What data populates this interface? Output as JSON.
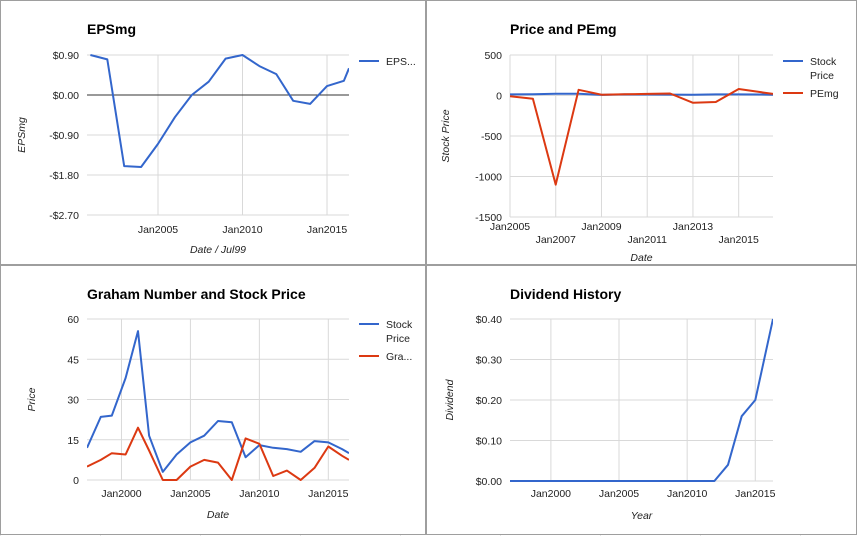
{
  "chart_data": [
    {
      "id": "eps",
      "type": "line",
      "title": "EPSmg",
      "xlabel": "Date / Jul99",
      "ylabel": "EPSmg",
      "xlim": [
        2000.8,
        2016.3
      ],
      "ylim": [
        -2.7,
        0.9
      ],
      "yticks": [
        0.9,
        0,
        -0.9,
        -1.8,
        -2.7
      ],
      "ytick_labels": [
        "$0.90",
        "$0.00",
        "-$0.90",
        "-$1.80",
        "-$2.70"
      ],
      "xticks": [
        2005,
        2010,
        2015
      ],
      "xtick_labels": [
        "Jan2005",
        "Jan2010",
        "Jan2015"
      ],
      "zero_line": true,
      "grid": true,
      "legend_position": "right",
      "series": [
        {
          "name": "EPS...",
          "color": "#3366cc",
          "x": [
            2001,
            2002,
            2003,
            2004,
            2005,
            2006,
            2007,
            2008,
            2009,
            2010,
            2011,
            2012,
            2013,
            2014,
            2015,
            2016,
            2016.3
          ],
          "y": [
            0.9,
            0.8,
            -1.6,
            -1.62,
            -1.1,
            -0.5,
            0.0,
            0.3,
            0.82,
            0.9,
            0.65,
            0.47,
            -0.13,
            -0.2,
            0.2,
            0.32,
            0.6
          ]
        }
      ]
    },
    {
      "id": "pe",
      "type": "line",
      "title": "Price and PEmg",
      "xlabel": "Date",
      "ylabel": "Stock Price",
      "xlim": [
        2005,
        2016.5
      ],
      "ylim": [
        -1500,
        500
      ],
      "yticks": [
        500,
        0,
        -500,
        -1000,
        -1500
      ],
      "ytick_labels": [
        "500",
        "0",
        "-500",
        "-1000",
        "-1500"
      ],
      "xticks": [
        2005,
        2007,
        2009,
        2011,
        2013,
        2015
      ],
      "xtick_labels": [
        "Jan2005",
        "Jan2007",
        "Jan2009",
        "Jan2011",
        "Jan2013",
        "Jan2015"
      ],
      "grid": true,
      "legend_position": "right",
      "series": [
        {
          "name": "Stock Price",
          "color": "#3366cc",
          "x": [
            2005,
            2006,
            2007,
            2008,
            2009,
            2010,
            2011,
            2012,
            2013,
            2014,
            2015,
            2016,
            2016.5
          ],
          "y": [
            14,
            16,
            22,
            21,
            8,
            13,
            12,
            11,
            10,
            14,
            14,
            12,
            10
          ]
        },
        {
          "name": "PEmg",
          "color": "#dc3912",
          "x": [
            2005,
            2006,
            2007,
            2008,
            2009,
            2010,
            2011,
            2012,
            2013,
            2014,
            2015,
            2016,
            2016.5
          ],
          "y": [
            -10,
            -40,
            -1100,
            70,
            10,
            15,
            20,
            25,
            -90,
            -80,
            80,
            40,
            20
          ]
        }
      ]
    },
    {
      "id": "graham",
      "type": "line",
      "title": "Graham Number and Stock Price",
      "xlabel": "Date",
      "ylabel": "Price",
      "xlim": [
        1997.5,
        2016.5
      ],
      "ylim": [
        0,
        60
      ],
      "yticks": [
        60,
        45,
        30,
        15,
        0
      ],
      "ytick_labels": [
        "60",
        "45",
        "30",
        "15",
        "0"
      ],
      "xticks": [
        2000,
        2005,
        2010,
        2015
      ],
      "xtick_labels": [
        "Jan2000",
        "Jan2005",
        "Jan2010",
        "Jan2015"
      ],
      "grid": true,
      "legend_position": "right",
      "series": [
        {
          "name": "Stock Price",
          "color": "#3366cc",
          "x": [
            1997.5,
            1998.5,
            1999.3,
            2000.3,
            2001.2,
            2002,
            2003,
            2004,
            2005,
            2006,
            2007,
            2008,
            2009,
            2010,
            2011,
            2012,
            2013,
            2014,
            2015,
            2016,
            2016.5
          ],
          "y": [
            12,
            23.5,
            24,
            38,
            55.5,
            16.5,
            3,
            9.5,
            14,
            16.5,
            22,
            21.5,
            8.5,
            13,
            12,
            11.5,
            10.5,
            14.5,
            14,
            11.5,
            10
          ]
        },
        {
          "name": "Gra...",
          "color": "#dc3912",
          "x": [
            1997.5,
            1998.5,
            1999.3,
            2000.3,
            2001.2,
            2002,
            2003,
            2004,
            2005,
            2006,
            2007,
            2008,
            2009,
            2010,
            2011,
            2012,
            2013,
            2014,
            2015,
            2016,
            2016.5
          ],
          "y": [
            5,
            7.5,
            10,
            9.5,
            19.5,
            11,
            0,
            0,
            5,
            7.5,
            6.5,
            0,
            15.5,
            13.5,
            1.5,
            3.5,
            0,
            4.5,
            12.5,
            9,
            7.5
          ]
        }
      ]
    },
    {
      "id": "dividend",
      "type": "line",
      "title": "Dividend History",
      "xlabel": "Year",
      "ylabel": "Dividend",
      "xlim": [
        1997,
        2016.3
      ],
      "ylim": [
        0,
        0.4
      ],
      "yticks": [
        0.4,
        0.3,
        0.2,
        0.1,
        0
      ],
      "ytick_labels": [
        "$0.40",
        "$0.30",
        "$0.20",
        "$0.10",
        "$0.00"
      ],
      "xticks": [
        2000,
        2005,
        2010,
        2015
      ],
      "xtick_labels": [
        "Jan2000",
        "Jan2005",
        "Jan2010",
        "Jan2015"
      ],
      "grid": true,
      "legend_position": "none",
      "series": [
        {
          "color": "#3366cc",
          "x": [
            1997,
            2000,
            2005,
            2010,
            2012,
            2013,
            2014,
            2015,
            2016.3
          ],
          "y": [
            0,
            0,
            0,
            0,
            0,
            0.04,
            0.16,
            0.2,
            0.4
          ]
        }
      ]
    }
  ]
}
